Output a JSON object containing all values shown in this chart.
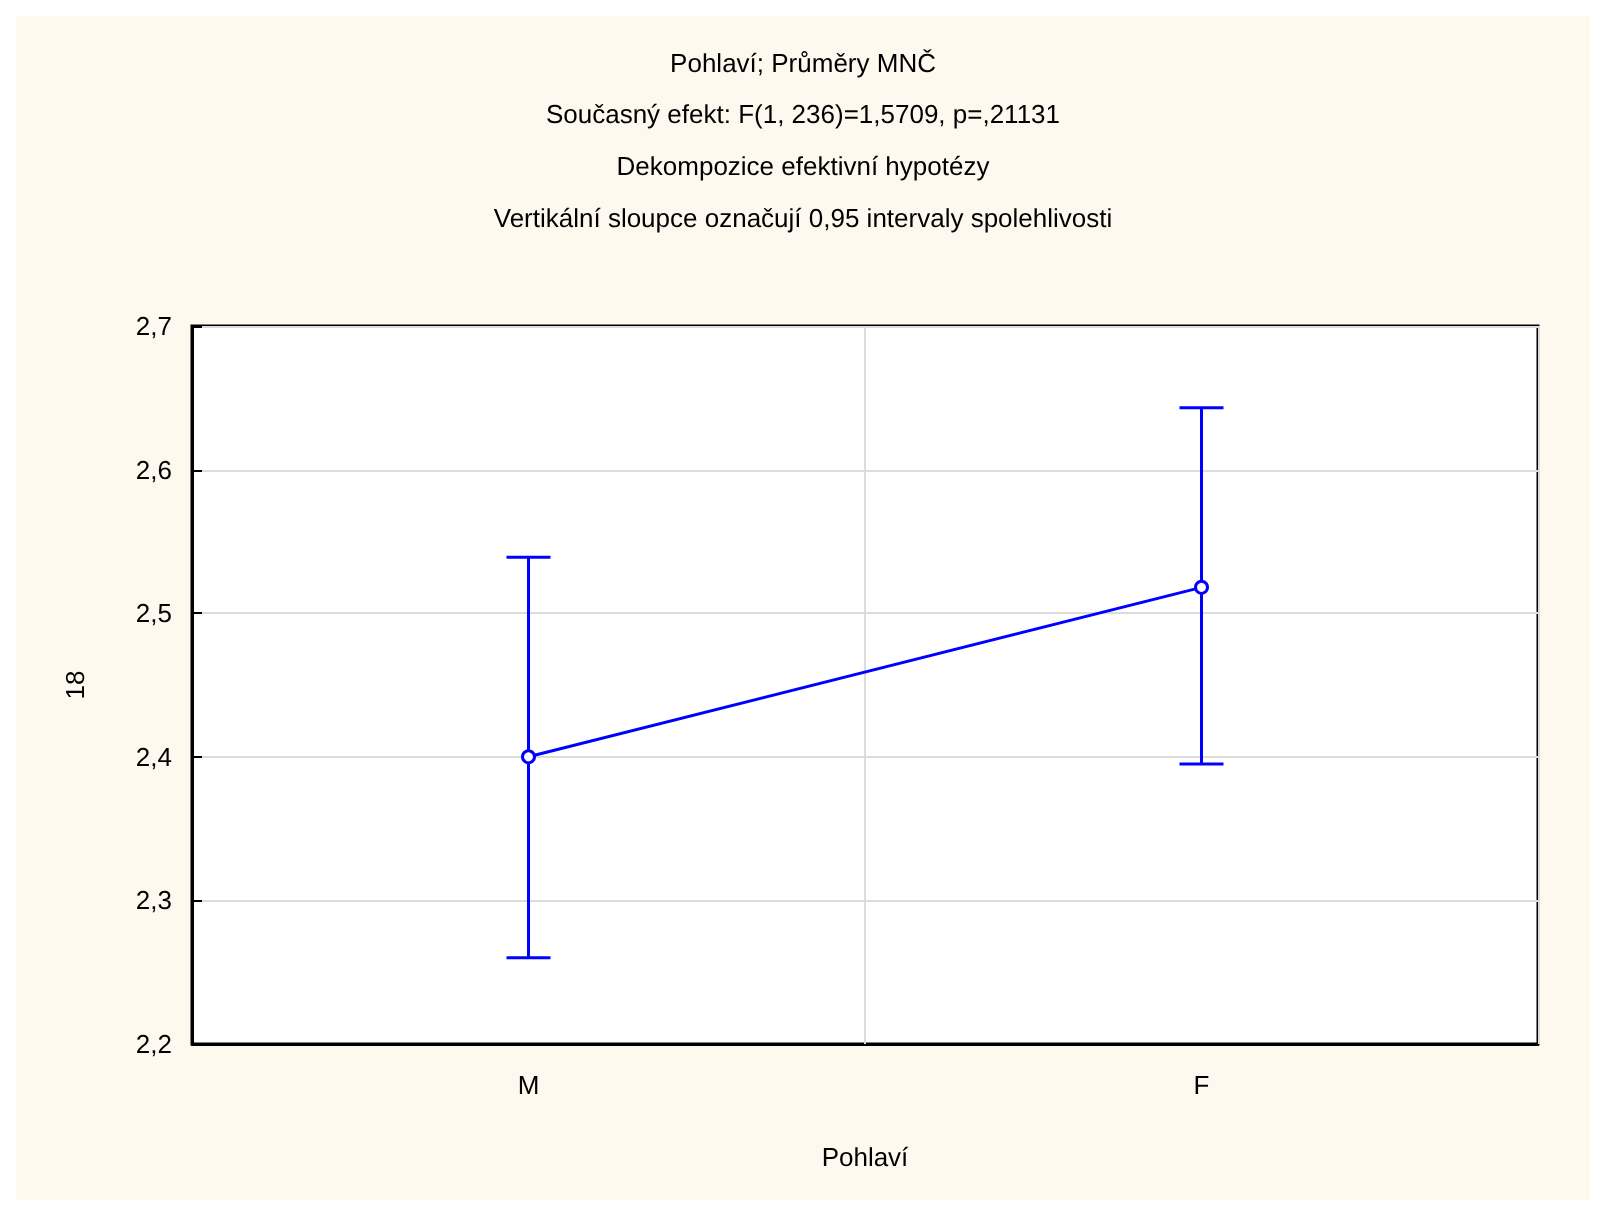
{
  "chart_data": {
    "type": "line",
    "title": "Pohlaví; Průměry MNČ",
    "subtitle": "Současný efekt: F(1, 236)=1,5709, p=,21131\nDekompozice efektivní hypotézy\nVertikální sloupce označují 0,95 intervaly spolehlivosti",
    "xlabel": "Pohlaví",
    "ylabel": "18",
    "categories": [
      "M",
      "F"
    ],
    "series": [
      {
        "color": "#0000ff",
        "values": [
          2.4,
          2.518
        ],
        "errors": [
          [
            2.26,
            2.539
          ],
          [
            2.395,
            2.643
          ]
        ]
      }
    ],
    "ylim": [
      2.2,
      2.7
    ],
    "yticks": [
      {
        "value": 2.2,
        "label": "2,2"
      },
      {
        "value": 2.3,
        "label": "2,3"
      },
      {
        "value": 2.4,
        "label": "2,4"
      },
      {
        "value": 2.5,
        "label": "2,5"
      },
      {
        "value": 2.6,
        "label": "2,6"
      },
      {
        "value": 2.7,
        "label": "2,7"
      }
    ],
    "grid": true,
    "marker": "circle",
    "line_style": "solid"
  }
}
